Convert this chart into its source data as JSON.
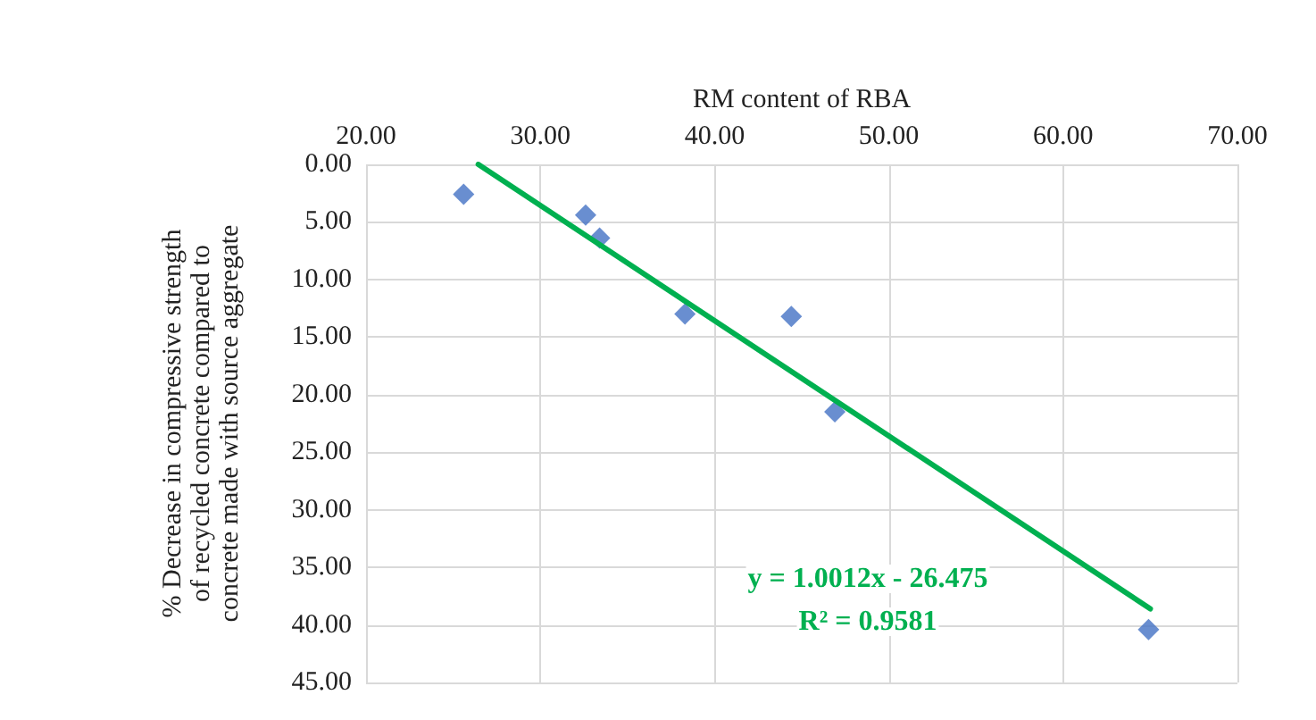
{
  "chart_data": {
    "type": "scatter",
    "xlabel": "RM content of RBA",
    "ylabel": "% Decrease in compressive strength\nof recycled concrete compared to\nconcrete made with source aggregate",
    "xlim": [
      20,
      70
    ],
    "xticks": [
      {
        "value": 20,
        "label": "20.00"
      },
      {
        "value": 30,
        "label": "30.00"
      },
      {
        "value": 40,
        "label": "40.00"
      },
      {
        "value": 50,
        "label": "50.00"
      },
      {
        "value": 60,
        "label": "60.00"
      },
      {
        "value": 70,
        "label": "70.00"
      }
    ],
    "ylim": [
      45,
      0
    ],
    "yticks": [
      {
        "value": 0,
        "label": "0.00"
      },
      {
        "value": 5,
        "label": "5.00"
      },
      {
        "value": 10,
        "label": "10.00"
      },
      {
        "value": 15,
        "label": "15.00"
      },
      {
        "value": 20,
        "label": "20.00"
      },
      {
        "value": 25,
        "label": "25.00"
      },
      {
        "value": 30,
        "label": "30.00"
      },
      {
        "value": 35,
        "label": "35.00"
      },
      {
        "value": 40,
        "label": "40.00"
      },
      {
        "value": 45,
        "label": "45.00"
      }
    ],
    "grid": true,
    "marker": "diamond",
    "series": [
      {
        "color": "#4472c4",
        "x": [
          25.6,
          32.6,
          33.4,
          38.3,
          44.4,
          46.9,
          64.9
        ],
        "values": [
          2.6,
          4.4,
          6.4,
          13.0,
          13.2,
          21.5,
          40.4
        ]
      },
      {
        "type": "line",
        "marker": "none",
        "color": "#00b050",
        "x": [
          26.44,
          65.0
        ],
        "values": [
          0,
          38.6
        ]
      }
    ],
    "annotations": [
      "y = 1.0012x - 26.475",
      "R² = 0.9581"
    ]
  }
}
